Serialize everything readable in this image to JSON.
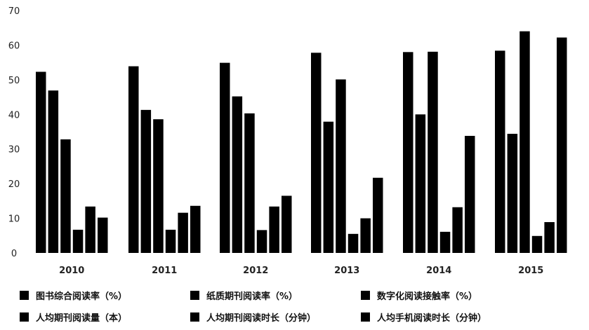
{
  "chart_data": {
    "type": "bar",
    "title": "",
    "xlabel": "",
    "ylabel": "",
    "ylim": [
      0,
      70
    ],
    "yticks": [
      0,
      10,
      20,
      30,
      40,
      50,
      60,
      70
    ],
    "grid": false,
    "legend_position": "bottom",
    "bar_color": "#000000",
    "categories": [
      "2010",
      "2011",
      "2012",
      "2013",
      "2014",
      "2015"
    ],
    "series": [
      {
        "name": "图书综合阅读率（%）",
        "values": [
          52.3,
          53.9,
          54.9,
          57.8,
          58.0,
          58.4
        ]
      },
      {
        "name": "纸质期刊阅读率（%）",
        "values": [
          46.9,
          41.3,
          45.2,
          37.9,
          40.0,
          34.4
        ]
      },
      {
        "name": "数字化阅读接触率（%）",
        "values": [
          32.8,
          38.6,
          40.3,
          50.1,
          58.1,
          64.0
        ]
      },
      {
        "name": "人均期刊阅读量（本）",
        "values": [
          6.7,
          6.7,
          6.6,
          5.5,
          6.1,
          4.9
        ]
      },
      {
        "name": "人均期刊阅读时长（分钟）",
        "values": [
          13.4,
          11.6,
          13.4,
          10.0,
          13.2,
          8.9
        ]
      },
      {
        "name": "人均手机阅读时长（分钟）",
        "values": [
          10.2,
          13.6,
          16.5,
          21.7,
          33.8,
          62.2
        ]
      }
    ]
  }
}
